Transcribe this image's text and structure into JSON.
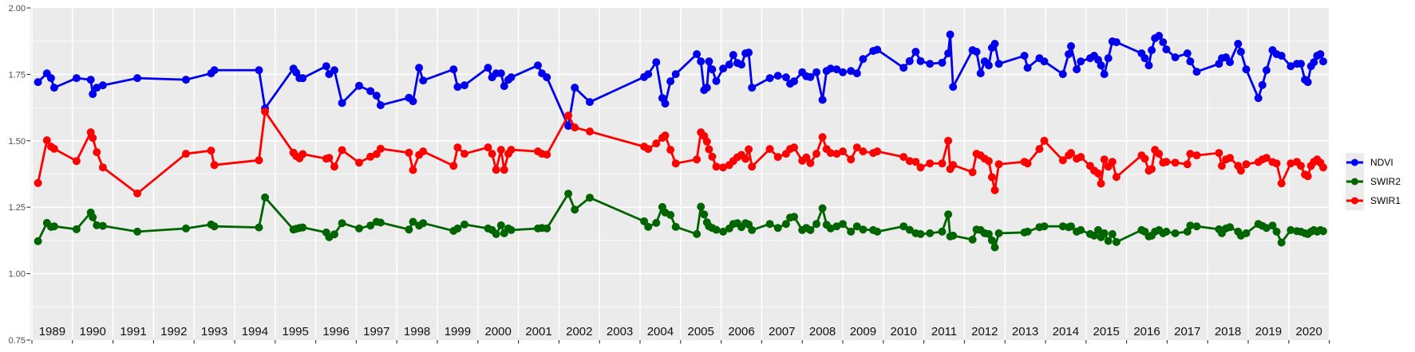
{
  "page": {
    "background": "#ffffff",
    "panel_bg": "#ebebeb",
    "grid_color": "#ffffff",
    "axis_text_color": "#4d4d4d",
    "year_label_color": "#111111",
    "tick_color": "#333333"
  },
  "legend": {
    "items": [
      {
        "label": "NDVI",
        "color": "#0000ee"
      },
      {
        "label": "SWIR2",
        "color": "#006400"
      },
      {
        "label": "SWIR1",
        "color": "#ff0000"
      }
    ]
  },
  "chart_data": {
    "type": "line",
    "title": "",
    "xlabel": "",
    "ylabel": "",
    "xlim": [
      1989,
      2021
    ],
    "ylim": [
      0.75,
      2.0
    ],
    "grid": "white major+minor horizontal, yearly vertical, gray panel",
    "legend_position": "right",
    "x_axis": {
      "labels": [
        "1989",
        "1990",
        "1991",
        "1992",
        "1993",
        "1994",
        "1995",
        "1996",
        "1997",
        "1998",
        "1999",
        "2000",
        "2001",
        "2002",
        "2003",
        "2004",
        "2005",
        "2006",
        "2007",
        "2008",
        "2009",
        "2010",
        "2011",
        "2012",
        "2013",
        "2014",
        "2015",
        "2016",
        "2017",
        "2018",
        "2019",
        "2020"
      ]
    },
    "y_axis": {
      "labels": [
        "2.00",
        "1.75",
        "1.50",
        "1.25",
        "1.00",
        "0.75"
      ],
      "values": [
        2.0,
        1.75,
        1.5,
        1.25,
        1.0,
        0.75
      ],
      "minor_values": [
        1.875,
        1.625,
        1.375,
        1.125,
        0.875
      ],
      "major_values": [
        1.75,
        1.5,
        1.25,
        1.0
      ]
    },
    "series": [
      {
        "name": "NDVI",
        "color": "#0000ee"
      },
      {
        "name": "SWIR2",
        "color": "#006400"
      },
      {
        "name": "SWIR1",
        "color": "#ff0000"
      }
    ],
    "points": [
      {
        "x": 1989.15,
        "NDVI": 1.721,
        "SWIR2": 1.122,
        "SWIR1": 1.341
      },
      {
        "x": 1989.37,
        "NDVI": 1.754,
        "SWIR2": 1.191,
        "SWIR1": 1.502
      },
      {
        "x": 1989.47,
        "NDVI": 1.736,
        "SWIR2": 1.176,
        "SWIR1": 1.478
      },
      {
        "x": 1989.55,
        "NDVI": 1.7,
        "SWIR2": 1.178,
        "SWIR1": 1.47
      },
      {
        "x": 1990.1,
        "NDVI": 1.736,
        "SWIR2": 1.167,
        "SWIR1": 1.424
      },
      {
        "x": 1990.45,
        "NDVI": 1.73,
        "SWIR2": 1.23,
        "SWIR1": 1.532
      },
      {
        "x": 1990.5,
        "NDVI": 1.676,
        "SWIR2": 1.212,
        "SWIR1": 1.511
      },
      {
        "x": 1990.6,
        "NDVI": 1.7,
        "SWIR2": 1.182,
        "SWIR1": 1.457
      },
      {
        "x": 1990.75,
        "NDVI": 1.709,
        "SWIR2": 1.18,
        "SWIR1": 1.4
      },
      {
        "x": 1991.6,
        "NDVI": 1.736,
        "SWIR2": 1.158,
        "SWIR1": 1.302
      },
      {
        "x": 1992.8,
        "NDVI": 1.73,
        "SWIR2": 1.17,
        "SWIR1": 1.451
      },
      {
        "x": 1993.42,
        "NDVI": 1.754,
        "SWIR2": 1.185,
        "SWIR1": 1.463
      },
      {
        "x": 1993.5,
        "NDVI": 1.766,
        "SWIR2": 1.178,
        "SWIR1": 1.409
      },
      {
        "x": 1994.6,
        "NDVI": 1.766,
        "SWIR2": 1.174,
        "SWIR1": 1.427
      },
      {
        "x": 1994.75,
        "NDVI": 1.622,
        "SWIR2": 1.287,
        "SWIR1": 1.61
      },
      {
        "x": 1995.45,
        "NDVI": 1.772,
        "SWIR2": 1.166,
        "SWIR1": 1.455
      },
      {
        "x": 1995.52,
        "NDVI": 1.757,
        "SWIR2": 1.169,
        "SWIR1": 1.442
      },
      {
        "x": 1995.6,
        "NDVI": 1.736,
        "SWIR2": 1.172,
        "SWIR1": 1.434
      },
      {
        "x": 1995.68,
        "NDVI": 1.736,
        "SWIR2": 1.174,
        "SWIR1": 1.45
      },
      {
        "x": 1996.26,
        "NDVI": 1.781,
        "SWIR2": 1.155,
        "SWIR1": 1.433
      },
      {
        "x": 1996.33,
        "NDVI": 1.751,
        "SWIR2": 1.137,
        "SWIR1": 1.436
      },
      {
        "x": 1996.46,
        "NDVI": 1.766,
        "SWIR2": 1.148,
        "SWIR1": 1.403
      },
      {
        "x": 1996.65,
        "NDVI": 1.642,
        "SWIR2": 1.19,
        "SWIR1": 1.465
      },
      {
        "x": 1997.07,
        "NDVI": 1.707,
        "SWIR2": 1.17,
        "SWIR1": 1.418
      },
      {
        "x": 1997.35,
        "NDVI": 1.687,
        "SWIR2": 1.181,
        "SWIR1": 1.44
      },
      {
        "x": 1997.5,
        "NDVI": 1.67,
        "SWIR2": 1.195,
        "SWIR1": 1.45
      },
      {
        "x": 1997.6,
        "NDVI": 1.634,
        "SWIR2": 1.192,
        "SWIR1": 1.47
      },
      {
        "x": 1998.3,
        "NDVI": 1.662,
        "SWIR2": 1.166,
        "SWIR1": 1.455
      },
      {
        "x": 1998.4,
        "NDVI": 1.649,
        "SWIR2": 1.195,
        "SWIR1": 1.39
      },
      {
        "x": 1998.55,
        "NDVI": 1.775,
        "SWIR2": 1.181,
        "SWIR1": 1.447
      },
      {
        "x": 1998.65,
        "NDVI": 1.727,
        "SWIR2": 1.19,
        "SWIR1": 1.46
      },
      {
        "x": 1999.4,
        "NDVI": 1.769,
        "SWIR2": 1.161,
        "SWIR1": 1.406
      },
      {
        "x": 1999.5,
        "NDVI": 1.703,
        "SWIR2": 1.17,
        "SWIR1": 1.475
      },
      {
        "x": 1999.67,
        "NDVI": 1.709,
        "SWIR2": 1.185,
        "SWIR1": 1.451
      },
      {
        "x": 2000.25,
        "NDVI": 1.775,
        "SWIR2": 1.17,
        "SWIR1": 1.475
      },
      {
        "x": 2000.35,
        "NDVI": 1.739,
        "SWIR2": 1.164,
        "SWIR1": 1.451
      },
      {
        "x": 2000.45,
        "NDVI": 1.754,
        "SWIR2": 1.149,
        "SWIR1": 1.391
      },
      {
        "x": 2000.57,
        "NDVI": 1.754,
        "SWIR2": 1.182,
        "SWIR1": 1.466
      },
      {
        "x": 2000.65,
        "NDVI": 1.706,
        "SWIR2": 1.152,
        "SWIR1": 1.391
      },
      {
        "x": 2000.75,
        "NDVI": 1.73,
        "SWIR2": 1.17,
        "SWIR1": 1.451
      },
      {
        "x": 2000.82,
        "NDVI": 1.739,
        "SWIR2": 1.164,
        "SWIR1": 1.466
      },
      {
        "x": 2001.48,
        "NDVI": 1.784,
        "SWIR2": 1.17,
        "SWIR1": 1.46
      },
      {
        "x": 2001.58,
        "NDVI": 1.754,
        "SWIR2": 1.172,
        "SWIR1": 1.451
      },
      {
        "x": 2001.7,
        "NDVI": 1.739,
        "SWIR2": 1.17,
        "SWIR1": 1.448
      },
      {
        "x": 2002.23,
        "NDVI": 1.556,
        "SWIR2": 1.301,
        "SWIR1": 1.595
      },
      {
        "x": 2002.39,
        "NDVI": 1.7,
        "SWIR2": 1.241,
        "SWIR1": 1.55
      },
      {
        "x": 2002.76,
        "NDVI": 1.646,
        "SWIR2": 1.286,
        "SWIR1": 1.535
      },
      {
        "x": 2004.1,
        "NDVI": 1.74,
        "SWIR2": 1.197,
        "SWIR1": 1.478
      },
      {
        "x": 2004.2,
        "NDVI": 1.751,
        "SWIR2": 1.176,
        "SWIR1": 1.469
      },
      {
        "x": 2004.4,
        "NDVI": 1.796,
        "SWIR2": 1.191,
        "SWIR1": 1.49
      },
      {
        "x": 2004.55,
        "NDVI": 1.661,
        "SWIR2": 1.251,
        "SWIR1": 1.511
      },
      {
        "x": 2004.62,
        "NDVI": 1.64,
        "SWIR2": 1.23,
        "SWIR1": 1.52
      },
      {
        "x": 2004.75,
        "NDVI": 1.724,
        "SWIR2": 1.221,
        "SWIR1": 1.466
      },
      {
        "x": 2004.88,
        "NDVI": 1.751,
        "SWIR2": 1.176,
        "SWIR1": 1.415
      },
      {
        "x": 2005.4,
        "NDVI": 1.826,
        "SWIR2": 1.149,
        "SWIR1": 1.43
      },
      {
        "x": 2005.5,
        "NDVI": 1.799,
        "SWIR2": 1.252,
        "SWIR1": 1.532
      },
      {
        "x": 2005.58,
        "NDVI": 1.691,
        "SWIR2": 1.223,
        "SWIR1": 1.518
      },
      {
        "x": 2005.65,
        "NDVI": 1.7,
        "SWIR2": 1.193,
        "SWIR1": 1.497
      },
      {
        "x": 2005.7,
        "NDVI": 1.799,
        "SWIR2": 1.178,
        "SWIR1": 1.468
      },
      {
        "x": 2005.78,
        "NDVI": 1.769,
        "SWIR2": 1.172,
        "SWIR1": 1.44
      },
      {
        "x": 2005.88,
        "NDVI": 1.725,
        "SWIR2": 1.165,
        "SWIR1": 1.403
      },
      {
        "x": 2006.05,
        "NDVI": 1.772,
        "SWIR2": 1.158,
        "SWIR1": 1.4
      },
      {
        "x": 2006.2,
        "NDVI": 1.787,
        "SWIR2": 1.17,
        "SWIR1": 1.409
      },
      {
        "x": 2006.3,
        "NDVI": 1.823,
        "SWIR2": 1.187,
        "SWIR1": 1.424
      },
      {
        "x": 2006.4,
        "NDVI": 1.793,
        "SWIR2": 1.19,
        "SWIR1": 1.438
      },
      {
        "x": 2006.5,
        "NDVI": 1.787,
        "SWIR2": 1.175,
        "SWIR1": 1.447
      },
      {
        "x": 2006.6,
        "NDVI": 1.829,
        "SWIR2": 1.19,
        "SWIR1": 1.432
      },
      {
        "x": 2006.68,
        "NDVI": 1.832,
        "SWIR2": 1.185,
        "SWIR1": 1.468
      },
      {
        "x": 2006.76,
        "NDVI": 1.7,
        "SWIR2": 1.164,
        "SWIR1": 1.403
      },
      {
        "x": 2007.2,
        "NDVI": 1.736,
        "SWIR2": 1.187,
        "SWIR1": 1.469
      },
      {
        "x": 2007.4,
        "NDVI": 1.745,
        "SWIR2": 1.172,
        "SWIR1": 1.439
      },
      {
        "x": 2007.6,
        "NDVI": 1.739,
        "SWIR2": 1.187,
        "SWIR1": 1.451
      },
      {
        "x": 2007.7,
        "NDVI": 1.715,
        "SWIR2": 1.211,
        "SWIR1": 1.469
      },
      {
        "x": 2007.8,
        "NDVI": 1.724,
        "SWIR2": 1.214,
        "SWIR1": 1.475
      },
      {
        "x": 2008.0,
        "NDVI": 1.758,
        "SWIR2": 1.164,
        "SWIR1": 1.425
      },
      {
        "x": 2008.1,
        "NDVI": 1.743,
        "SWIR2": 1.172,
        "SWIR1": 1.437
      },
      {
        "x": 2008.2,
        "NDVI": 1.74,
        "SWIR2": 1.164,
        "SWIR1": 1.416
      },
      {
        "x": 2008.35,
        "NDVI": 1.758,
        "SWIR2": 1.187,
        "SWIR1": 1.451
      },
      {
        "x": 2008.5,
        "NDVI": 1.654,
        "SWIR2": 1.246,
        "SWIR1": 1.514
      },
      {
        "x": 2008.6,
        "NDVI": 1.763,
        "SWIR2": 1.184,
        "SWIR1": 1.469
      },
      {
        "x": 2008.7,
        "NDVI": 1.772,
        "SWIR2": 1.17,
        "SWIR1": 1.454
      },
      {
        "x": 2008.85,
        "NDVI": 1.769,
        "SWIR2": 1.178,
        "SWIR1": 1.451
      },
      {
        "x": 2009.0,
        "NDVI": 1.758,
        "SWIR2": 1.187,
        "SWIR1": 1.46
      },
      {
        "x": 2009.2,
        "NDVI": 1.763,
        "SWIR2": 1.158,
        "SWIR1": 1.43
      },
      {
        "x": 2009.35,
        "NDVI": 1.754,
        "SWIR2": 1.178,
        "SWIR1": 1.475
      },
      {
        "x": 2009.5,
        "NDVI": 1.808,
        "SWIR2": 1.166,
        "SWIR1": 1.46
      },
      {
        "x": 2009.75,
        "NDVI": 1.838,
        "SWIR2": 1.164,
        "SWIR1": 1.454
      },
      {
        "x": 2009.85,
        "NDVI": 1.843,
        "SWIR2": 1.158,
        "SWIR1": 1.46
      },
      {
        "x": 2010.5,
        "NDVI": 1.775,
        "SWIR2": 1.178,
        "SWIR1": 1.439
      },
      {
        "x": 2010.65,
        "NDVI": 1.8,
        "SWIR2": 1.165,
        "SWIR1": 1.424
      },
      {
        "x": 2010.8,
        "NDVI": 1.835,
        "SWIR2": 1.152,
        "SWIR1": 1.421
      },
      {
        "x": 2010.92,
        "NDVI": 1.8,
        "SWIR2": 1.149,
        "SWIR1": 1.4
      },
      {
        "x": 2011.15,
        "NDVI": 1.79,
        "SWIR2": 1.152,
        "SWIR1": 1.415
      },
      {
        "x": 2011.45,
        "NDVI": 1.794,
        "SWIR2": 1.158,
        "SWIR1": 1.415
      },
      {
        "x": 2011.6,
        "NDVI": 1.829,
        "SWIR2": 1.223,
        "SWIR1": 1.5
      },
      {
        "x": 2011.65,
        "NDVI": 1.9,
        "SWIR2": 1.14,
        "SWIR1": 1.394
      },
      {
        "x": 2011.72,
        "NDVI": 1.703,
        "SWIR2": 1.143,
        "SWIR1": 1.409
      },
      {
        "x": 2012.2,
        "NDVI": 1.841,
        "SWIR2": 1.128,
        "SWIR1": 1.382
      },
      {
        "x": 2012.3,
        "NDVI": 1.835,
        "SWIR2": 1.166,
        "SWIR1": 1.451
      },
      {
        "x": 2012.4,
        "NDVI": 1.754,
        "SWIR2": 1.164,
        "SWIR1": 1.445
      },
      {
        "x": 2012.5,
        "NDVI": 1.799,
        "SWIR2": 1.152,
        "SWIR1": 1.433
      },
      {
        "x": 2012.6,
        "NDVI": 1.784,
        "SWIR2": 1.149,
        "SWIR1": 1.424
      },
      {
        "x": 2012.68,
        "NDVI": 1.85,
        "SWIR2": 1.125,
        "SWIR1": 1.363
      },
      {
        "x": 2012.75,
        "NDVI": 1.865,
        "SWIR2": 1.099,
        "SWIR1": 1.314
      },
      {
        "x": 2012.85,
        "NDVI": 1.79,
        "SWIR2": 1.152,
        "SWIR1": 1.412
      },
      {
        "x": 2013.48,
        "NDVI": 1.82,
        "SWIR2": 1.155,
        "SWIR1": 1.421
      },
      {
        "x": 2013.56,
        "NDVI": 1.775,
        "SWIR2": 1.158,
        "SWIR1": 1.415
      },
      {
        "x": 2013.85,
        "NDVI": 1.811,
        "SWIR2": 1.175,
        "SWIR1": 1.469
      },
      {
        "x": 2013.97,
        "NDVI": 1.799,
        "SWIR2": 1.178,
        "SWIR1": 1.5
      },
      {
        "x": 2014.43,
        "NDVI": 1.751,
        "SWIR2": 1.178,
        "SWIR1": 1.427
      },
      {
        "x": 2014.57,
        "NDVI": 1.826,
        "SWIR2": 1.175,
        "SWIR1": 1.445
      },
      {
        "x": 2014.63,
        "NDVI": 1.856,
        "SWIR2": 1.178,
        "SWIR1": 1.454
      },
      {
        "x": 2014.77,
        "NDVI": 1.769,
        "SWIR2": 1.158,
        "SWIR1": 1.433
      },
      {
        "x": 2014.87,
        "NDVI": 1.799,
        "SWIR2": 1.164,
        "SWIR1": 1.439
      },
      {
        "x": 2015.1,
        "NDVI": 1.811,
        "SWIR2": 1.149,
        "SWIR1": 1.406
      },
      {
        "x": 2015.2,
        "NDVI": 1.82,
        "SWIR2": 1.143,
        "SWIR1": 1.388
      },
      {
        "x": 2015.3,
        "NDVI": 1.805,
        "SWIR2": 1.164,
        "SWIR1": 1.377
      },
      {
        "x": 2015.37,
        "NDVI": 1.784,
        "SWIR2": 1.137,
        "SWIR1": 1.339
      },
      {
        "x": 2015.45,
        "NDVI": 1.751,
        "SWIR2": 1.152,
        "SWIR1": 1.43
      },
      {
        "x": 2015.55,
        "NDVI": 1.811,
        "SWIR2": 1.123,
        "SWIR1": 1.403
      },
      {
        "x": 2015.65,
        "NDVI": 1.874,
        "SWIR2": 1.149,
        "SWIR1": 1.421
      },
      {
        "x": 2015.75,
        "NDVI": 1.871,
        "SWIR2": 1.119,
        "SWIR1": 1.364
      },
      {
        "x": 2016.37,
        "NDVI": 1.829,
        "SWIR2": 1.164,
        "SWIR1": 1.445
      },
      {
        "x": 2016.45,
        "NDVI": 1.811,
        "SWIR2": 1.158,
        "SWIR1": 1.433
      },
      {
        "x": 2016.55,
        "NDVI": 1.784,
        "SWIR2": 1.14,
        "SWIR1": 1.388
      },
      {
        "x": 2016.62,
        "NDVI": 1.841,
        "SWIR2": 1.143,
        "SWIR1": 1.394
      },
      {
        "x": 2016.7,
        "NDVI": 1.886,
        "SWIR2": 1.158,
        "SWIR1": 1.466
      },
      {
        "x": 2016.8,
        "NDVI": 1.895,
        "SWIR2": 1.164,
        "SWIR1": 1.451
      },
      {
        "x": 2016.9,
        "NDVI": 1.871,
        "SWIR2": 1.152,
        "SWIR1": 1.418
      },
      {
        "x": 2016.98,
        "NDVI": 1.844,
        "SWIR2": 1.158,
        "SWIR1": 1.421
      },
      {
        "x": 2017.2,
        "NDVI": 1.814,
        "SWIR2": 1.152,
        "SWIR1": 1.418
      },
      {
        "x": 2017.5,
        "NDVI": 1.829,
        "SWIR2": 1.158,
        "SWIR1": 1.412
      },
      {
        "x": 2017.57,
        "NDVI": 1.799,
        "SWIR2": 1.181,
        "SWIR1": 1.451
      },
      {
        "x": 2017.73,
        "NDVI": 1.76,
        "SWIR2": 1.178,
        "SWIR1": 1.445
      },
      {
        "x": 2018.28,
        "NDVI": 1.79,
        "SWIR2": 1.167,
        "SWIR1": 1.454
      },
      {
        "x": 2018.35,
        "NDVI": 1.811,
        "SWIR2": 1.152,
        "SWIR1": 1.406
      },
      {
        "x": 2018.45,
        "NDVI": 1.814,
        "SWIR2": 1.17,
        "SWIR1": 1.43
      },
      {
        "x": 2018.55,
        "NDVI": 1.796,
        "SWIR2": 1.175,
        "SWIR1": 1.436
      },
      {
        "x": 2018.75,
        "NDVI": 1.865,
        "SWIR2": 1.158,
        "SWIR1": 1.406
      },
      {
        "x": 2018.82,
        "NDVI": 1.835,
        "SWIR2": 1.143,
        "SWIR1": 1.388
      },
      {
        "x": 2018.95,
        "NDVI": 1.769,
        "SWIR2": 1.152,
        "SWIR1": 1.412
      },
      {
        "x": 2019.25,
        "NDVI": 1.661,
        "SWIR2": 1.187,
        "SWIR1": 1.42
      },
      {
        "x": 2019.35,
        "NDVI": 1.71,
        "SWIR2": 1.18,
        "SWIR1": 1.43
      },
      {
        "x": 2019.45,
        "NDVI": 1.766,
        "SWIR2": 1.172,
        "SWIR1": 1.436
      },
      {
        "x": 2019.6,
        "NDVI": 1.841,
        "SWIR2": 1.181,
        "SWIR1": 1.42
      },
      {
        "x": 2019.7,
        "NDVI": 1.826,
        "SWIR2": 1.158,
        "SWIR1": 1.415
      },
      {
        "x": 2019.82,
        "NDVI": 1.82,
        "SWIR2": 1.117,
        "SWIR1": 1.34
      },
      {
        "x": 2020.05,
        "NDVI": 1.781,
        "SWIR2": 1.164,
        "SWIR1": 1.415
      },
      {
        "x": 2020.2,
        "NDVI": 1.79,
        "SWIR2": 1.16,
        "SWIR1": 1.421
      },
      {
        "x": 2020.3,
        "NDVI": 1.79,
        "SWIR2": 1.158,
        "SWIR1": 1.406
      },
      {
        "x": 2020.4,
        "NDVI": 1.73,
        "SWIR2": 1.152,
        "SWIR1": 1.373
      },
      {
        "x": 2020.47,
        "NDVI": 1.721,
        "SWIR2": 1.149,
        "SWIR1": 1.367
      },
      {
        "x": 2020.55,
        "NDVI": 1.781,
        "SWIR2": 1.158,
        "SWIR1": 1.406
      },
      {
        "x": 2020.62,
        "NDVI": 1.796,
        "SWIR2": 1.164,
        "SWIR1": 1.421
      },
      {
        "x": 2020.7,
        "NDVI": 1.82,
        "SWIR2": 1.158,
        "SWIR1": 1.43
      },
      {
        "x": 2020.78,
        "NDVI": 1.826,
        "SWIR2": 1.164,
        "SWIR1": 1.418
      },
      {
        "x": 2020.85,
        "NDVI": 1.799,
        "SWIR2": 1.16,
        "SWIR1": 1.4
      }
    ]
  }
}
